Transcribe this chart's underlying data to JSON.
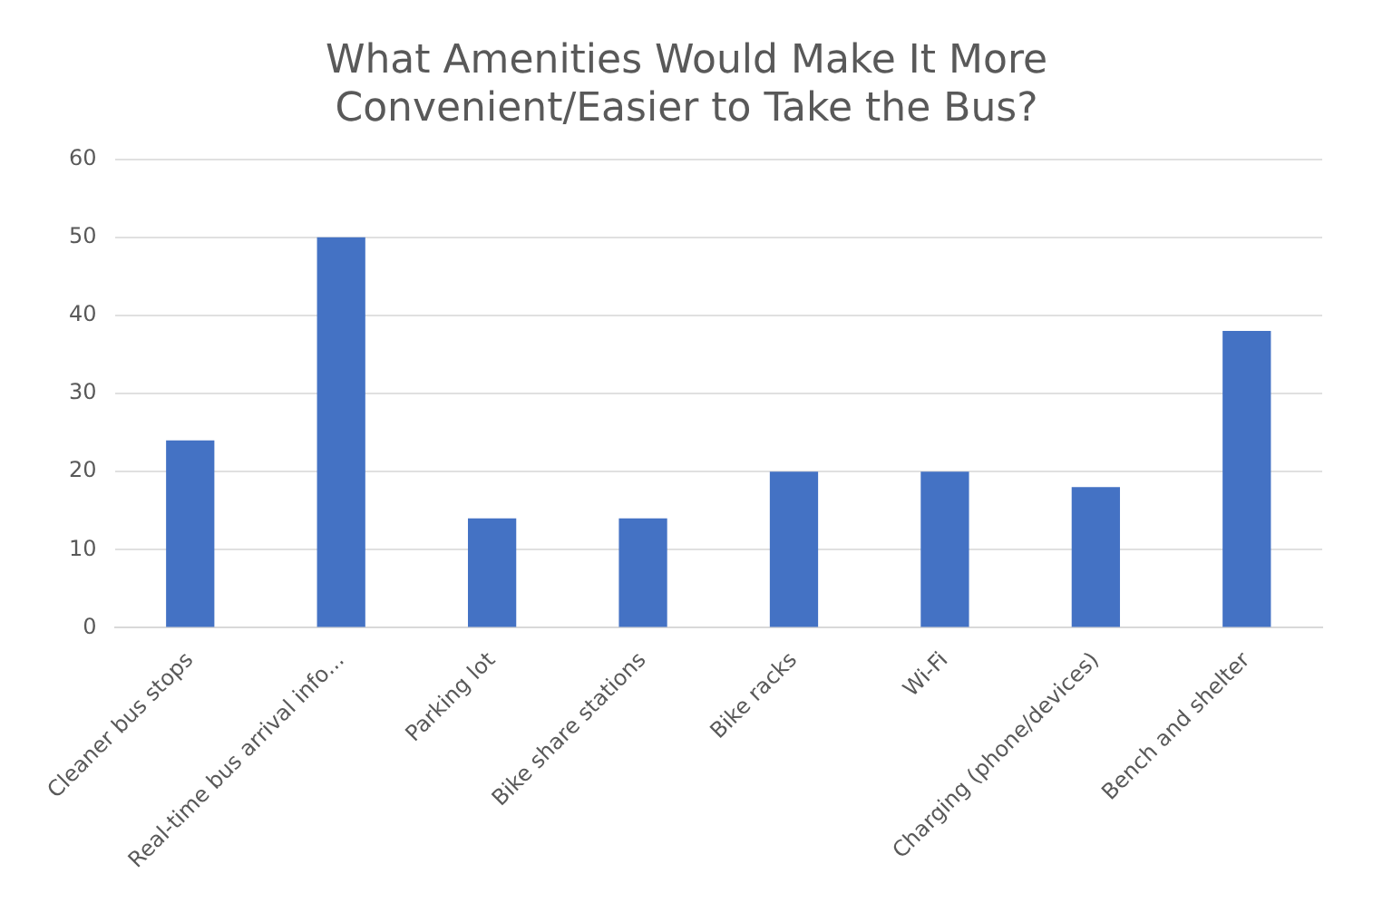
{
  "chart_data": {
    "type": "bar",
    "title": "What Amenities Would Make It More Convenient/Easier to Take the Bus?",
    "categories": [
      "Cleaner bus stops",
      "Real-time bus arrival info...",
      "Parking lot",
      "Bike share stations",
      "Bike racks",
      "Wi-Fi",
      "Charging (phone/devices)",
      "Bench and shelter"
    ],
    "values": [
      24,
      50,
      14,
      14,
      20,
      20,
      18,
      38
    ],
    "color": "#4472c4",
    "ylim": [
      0,
      60
    ],
    "yticks": [
      0,
      10,
      20,
      30,
      40,
      50,
      60
    ],
    "grid": "y",
    "legend": false
  }
}
